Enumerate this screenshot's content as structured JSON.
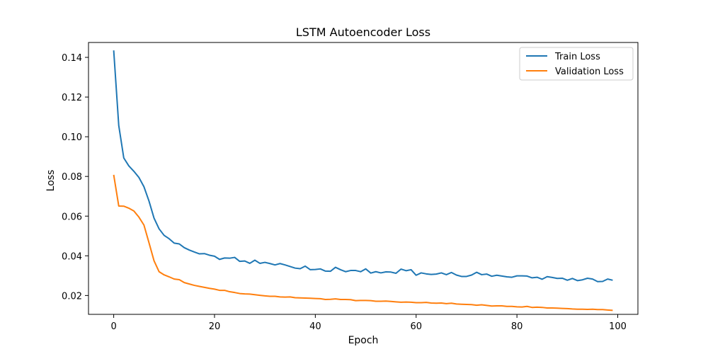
{
  "chart_data": {
    "type": "line",
    "title": "LSTM Autoencoder Loss",
    "xlabel": "Epoch",
    "ylabel": "Loss",
    "xlim": [
      -5,
      104
    ],
    "ylim": [
      0.0105,
      0.1475
    ],
    "xticks": [
      0,
      20,
      40,
      60,
      80,
      100
    ],
    "yticks": [
      0.02,
      0.04,
      0.06,
      0.08,
      0.1,
      0.12,
      0.14
    ],
    "ytick_labels": [
      "0.02",
      "0.04",
      "0.06",
      "0.08",
      "0.10",
      "0.12",
      "0.14"
    ],
    "xtick_labels": [
      "0",
      "20",
      "40",
      "60",
      "80",
      "100"
    ],
    "grid": false,
    "legend_position": "top-right",
    "series": [
      {
        "name": "Train Loss",
        "color": "#1f77b4",
        "values": [
          0.1435,
          0.1057,
          0.0893,
          0.0853,
          0.0826,
          0.0795,
          0.0748,
          0.0676,
          0.059,
          0.0536,
          0.0503,
          0.0486,
          0.0464,
          0.046,
          0.0441,
          0.0429,
          0.0419,
          0.041,
          0.0411,
          0.0403,
          0.0398,
          0.0382,
          0.0389,
          0.0388,
          0.0392,
          0.0372,
          0.0374,
          0.0362,
          0.0378,
          0.0362,
          0.0367,
          0.0361,
          0.0354,
          0.0361,
          0.0354,
          0.0346,
          0.0338,
          0.0335,
          0.0348,
          0.033,
          0.0331,
          0.0334,
          0.0323,
          0.0322,
          0.0342,
          0.033,
          0.032,
          0.0326,
          0.0326,
          0.032,
          0.0334,
          0.0313,
          0.032,
          0.0314,
          0.0319,
          0.0318,
          0.0312,
          0.0333,
          0.0325,
          0.033,
          0.0302,
          0.0314,
          0.0309,
          0.0306,
          0.0308,
          0.0314,
          0.0305,
          0.0316,
          0.0303,
          0.0296,
          0.0296,
          0.0303,
          0.0317,
          0.0305,
          0.0308,
          0.0297,
          0.0302,
          0.0298,
          0.0294,
          0.0292,
          0.0299,
          0.0299,
          0.0298,
          0.0289,
          0.0292,
          0.0282,
          0.0295,
          0.0291,
          0.0286,
          0.0287,
          0.0277,
          0.0286,
          0.0275,
          0.0279,
          0.0287,
          0.0283,
          0.027,
          0.0271,
          0.0283,
          0.0277
        ]
      },
      {
        "name": "Validation Loss",
        "color": "#ff7f0e",
        "values": [
          0.0808,
          0.0651,
          0.065,
          0.064,
          0.0626,
          0.0595,
          0.0555,
          0.0466,
          0.0375,
          0.032,
          0.0304,
          0.0294,
          0.0283,
          0.028,
          0.0265,
          0.0258,
          0.0251,
          0.0246,
          0.0241,
          0.0236,
          0.0232,
          0.0226,
          0.0226,
          0.0219,
          0.0215,
          0.021,
          0.0208,
          0.0207,
          0.0204,
          0.0201,
          0.0198,
          0.0196,
          0.0196,
          0.0193,
          0.0192,
          0.0193,
          0.0189,
          0.0188,
          0.0187,
          0.0186,
          0.0185,
          0.0184,
          0.018,
          0.0181,
          0.0183,
          0.018,
          0.018,
          0.0179,
          0.0174,
          0.0175,
          0.0175,
          0.0174,
          0.0171,
          0.0171,
          0.0172,
          0.017,
          0.0168,
          0.0166,
          0.0167,
          0.0166,
          0.0164,
          0.0164,
          0.0165,
          0.0162,
          0.0161,
          0.0162,
          0.0159,
          0.0161,
          0.0157,
          0.0156,
          0.0155,
          0.0154,
          0.0151,
          0.0153,
          0.015,
          0.0147,
          0.0148,
          0.0148,
          0.0145,
          0.0145,
          0.0143,
          0.0142,
          0.0145,
          0.014,
          0.0141,
          0.014,
          0.0137,
          0.0137,
          0.0136,
          0.0135,
          0.0134,
          0.0132,
          0.0131,
          0.0131,
          0.013,
          0.0131,
          0.0129,
          0.0129,
          0.0127,
          0.0125
        ]
      }
    ]
  }
}
